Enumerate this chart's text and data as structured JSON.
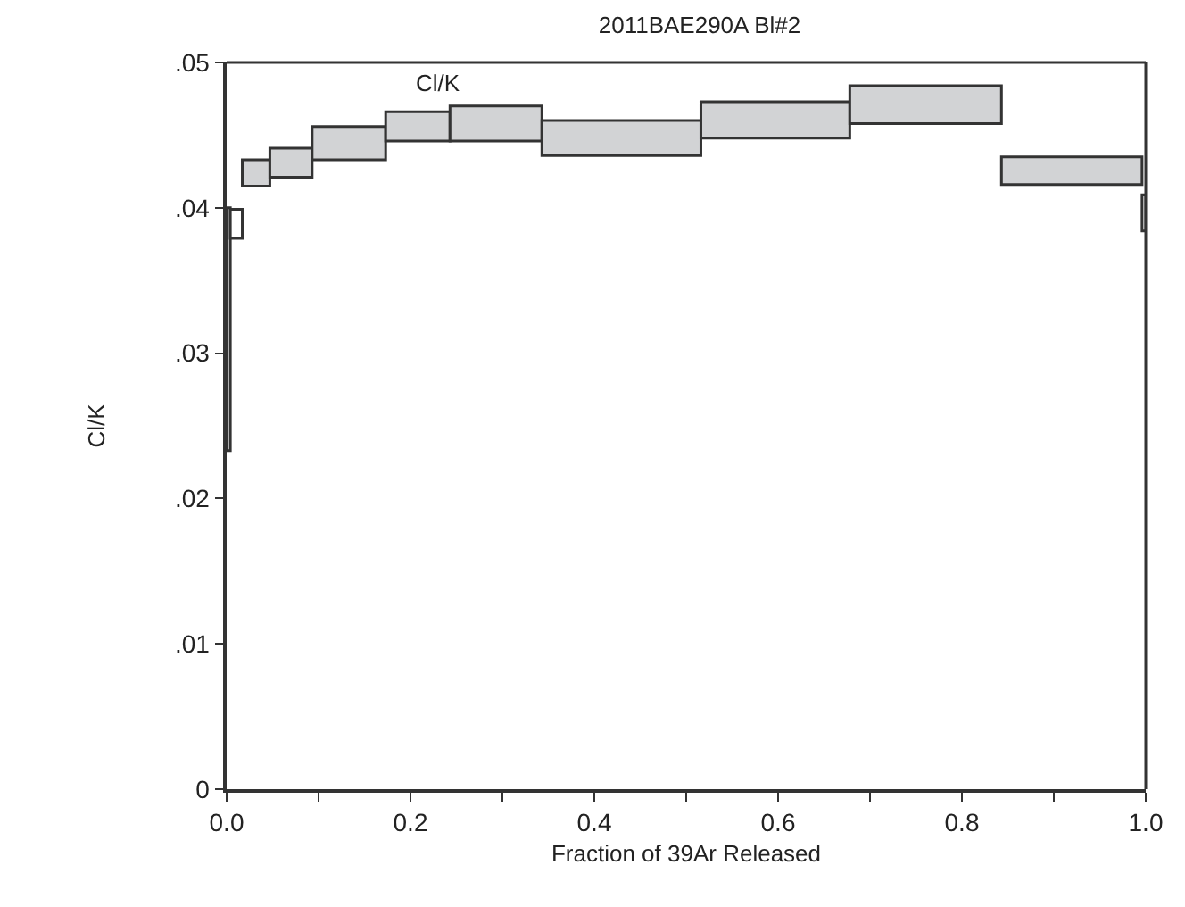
{
  "chart_data": {
    "type": "bar",
    "title": "2011BAE290A Bl#2",
    "subtitle": "Cl/K",
    "xlabel": "Fraction of 39Ar Released",
    "ylabel": "Cl/K",
    "x": [
      0.002,
      0.0105,
      0.032,
      0.07,
      0.133,
      0.208,
      0.293,
      0.4295,
      0.597,
      0.7605,
      0.9195,
      0.998
    ],
    "base": [
      0.0233,
      0.0379,
      0.0415,
      0.0421,
      0.0433,
      0.0446,
      0.0446,
      0.0436,
      0.0448,
      0.0458,
      0.0416,
      0.0384
    ],
    "values": [
      0.0167,
      0.002,
      0.0018,
      0.002,
      0.0023,
      0.002,
      0.0024,
      0.0024,
      0.0025,
      0.0026,
      0.0019,
      0.0025
    ],
    "colors": [
      "#ffffff",
      "#ffffff",
      "#d2d3d5",
      "#d2d3d5",
      "#d2d3d5",
      "#d2d3d5",
      "#d2d3d5",
      "#d2d3d5",
      "#d2d3d5",
      "#d2d3d5",
      "#d2d3d5",
      "#ffffff"
    ],
    "xlim": [
      0,
      1.0
    ],
    "ylim": [
      0,
      0.05
    ],
    "xticks": [
      {
        "value": 0,
        "label": "0.0"
      },
      {
        "value": 0.1,
        "label": null
      },
      {
        "value": 0.2,
        "label": "0.2"
      },
      {
        "value": 0.3,
        "label": null
      },
      {
        "value": 0.4,
        "label": "0.4"
      },
      {
        "value": 0.5,
        "label": null
      },
      {
        "value": 0.6,
        "label": "0.6"
      },
      {
        "value": 0.7,
        "label": null
      },
      {
        "value": 0.8,
        "label": "0.8"
      },
      {
        "value": 0.9,
        "label": null
      },
      {
        "value": 1.0,
        "label": "1.0"
      }
    ],
    "yticks": [
      0,
      {
        "value": 0.01,
        "label": ".01"
      },
      {
        "value": 0.02,
        "label": ".02"
      },
      {
        "value": 0.03,
        "label": ".03"
      },
      {
        "value": 0.04,
        "label": ".04"
      },
      {
        "value": 0.05,
        "label": ".05"
      }
    ]
  }
}
